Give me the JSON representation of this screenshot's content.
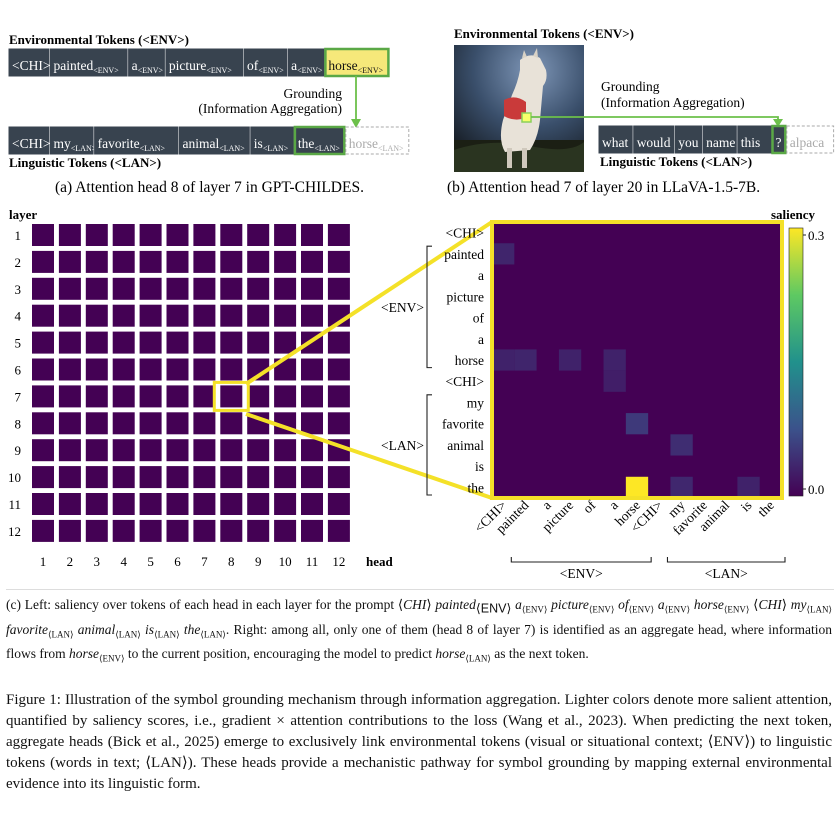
{
  "panel_a": {
    "env_heading": "Environmental Tokens (<ENV>)",
    "env_tokens": [
      {
        "t": "<CHI>",
        "s": ""
      },
      {
        "t": "painted",
        "s": "<ENV>"
      },
      {
        "t": "a",
        "s": "<ENV>"
      },
      {
        "t": "picture",
        "s": "<ENV>"
      },
      {
        "t": "of",
        "s": "<ENV>"
      },
      {
        "t": "a",
        "s": "<ENV>"
      },
      {
        "t": "horse",
        "s": "<ENV>"
      }
    ],
    "grounding": [
      "Grounding",
      "(Information Aggregation)"
    ],
    "lan_tokens": [
      {
        "t": "<CHI>",
        "s": ""
      },
      {
        "t": "my",
        "s": "<LAN>"
      },
      {
        "t": "favorite",
        "s": "<LAN>"
      },
      {
        "t": "animal",
        "s": "<LAN>"
      },
      {
        "t": "is",
        "s": "<LAN>"
      },
      {
        "t": "the",
        "s": "<LAN>"
      },
      {
        "t": "horse",
        "s": "<LAN>"
      }
    ],
    "lan_heading": "Linguistic Tokens (<LAN>)",
    "caption": "(a) Attention head 8 of layer 7 in GPT-CHILDES."
  },
  "panel_b": {
    "env_heading": "Environmental Tokens (<ENV>)",
    "grounding": [
      "Grounding",
      "(Information Aggregation)"
    ],
    "lan_tokens": [
      "what",
      "would",
      "you",
      "name",
      "this",
      "?",
      "alpaca"
    ],
    "lan_heading": "Linguistic Tokens (<LAN>)",
    "caption": "(b) Attention head 7 of layer 20 in LLaVA-1.5-7B."
  },
  "grid": {
    "ylabel": "layer",
    "xlabel": "head",
    "layers": [
      "1",
      "2",
      "3",
      "4",
      "5",
      "6",
      "7",
      "8",
      "9",
      "10",
      "11",
      "12"
    ],
    "heads": [
      "1",
      "2",
      "3",
      "4",
      "5",
      "6",
      "7",
      "8",
      "9",
      "10",
      "11",
      "12"
    ],
    "highlight": {
      "layer": 7,
      "head": 8
    }
  },
  "chart_data": {
    "type": "heatmap",
    "colorbar_label": "saliency",
    "colorbar_ticks": [
      "0.3",
      "0.0"
    ],
    "vmin": 0.0,
    "vmax": 0.3,
    "rows": [
      "<CHI>",
      "painted",
      "a",
      "picture",
      "of",
      "a",
      "horse",
      "<CHI>",
      "my",
      "favorite",
      "animal",
      "is",
      "the"
    ],
    "cols": [
      "<CHI>",
      "painted",
      "a",
      "picture",
      "of",
      "a",
      "horse",
      "<CHI>",
      "my",
      "favorite",
      "animal",
      "is",
      "the"
    ],
    "row_groups": [
      {
        "label": "<ENV>",
        "from": 1,
        "to": 6
      },
      {
        "label": "<LAN>",
        "from": 8,
        "to": 12
      }
    ],
    "col_groups": [
      {
        "label": "<ENV>",
        "from": 1,
        "to": 6
      },
      {
        "label": "<LAN>",
        "from": 8,
        "to": 12
      }
    ],
    "cells": [
      {
        "r": 1,
        "c": 0,
        "v": 0.012
      },
      {
        "r": 6,
        "c": 0,
        "v": 0.01
      },
      {
        "r": 6,
        "c": 1,
        "v": 0.012
      },
      {
        "r": 6,
        "c": 3,
        "v": 0.01
      },
      {
        "r": 6,
        "c": 5,
        "v": 0.01
      },
      {
        "r": 7,
        "c": 5,
        "v": 0.008
      },
      {
        "r": 9,
        "c": 6,
        "v": 0.03
      },
      {
        "r": 10,
        "c": 8,
        "v": 0.018
      },
      {
        "r": 12,
        "c": 6,
        "v": 0.3
      },
      {
        "r": 12,
        "c": 8,
        "v": 0.014
      },
      {
        "r": 12,
        "c": 11,
        "v": 0.01
      }
    ]
  },
  "caption_c": {
    "l1a": "(c) Left: saliency over tokens of each head in each layer for the prompt ⟨",
    "chi": "CHI",
    "painted": "painted",
    "a": "a",
    "picture": "picture",
    "of": "of",
    "horse": "horse",
    "my": "my",
    "favorite": "favorite",
    "animal": "animal",
    "is": "is",
    "the": "the",
    "sub_env": "⟨ENV⟩",
    "sub_lan": "⟨LAN⟩",
    "l2b": ". Right: among all, only one of",
    "l3a": "them (head 8 of layer 7) is identified as an aggregate head, where information flows from",
    "l4a": "position, encouraging the model to predict",
    "l4b": "as the next token.",
    "l3b": "to the current"
  },
  "figure_caption": "Figure 1: Illustration of the symbol grounding mechanism through information aggregation. Lighter colors denote more salient attention, quantified by saliency scores, i.e., gradient × attention contributions to the loss (Wang et al., 2023). When predicting the next token, aggregate heads (Bick et al., 2025) emerge to exclusively link environmental tokens (visual or situational context; ⟨ENV⟩) to linguistic tokens (words in text; ⟨LAN⟩). These heads provide a mechanistic pathway for symbol grounding by mapping external environmental evidence into its linguistic form."
}
